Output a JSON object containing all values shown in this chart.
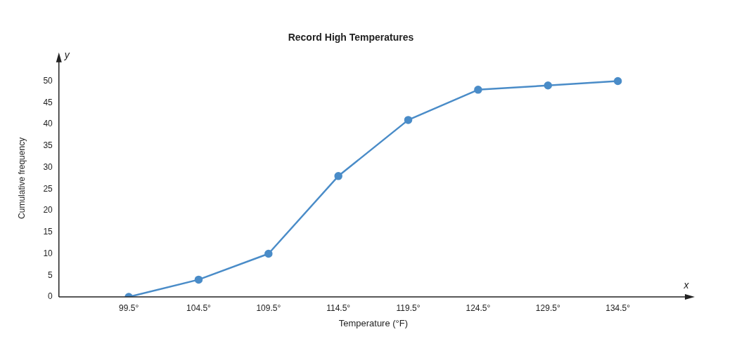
{
  "chart_data": {
    "type": "line",
    "title": "Record High Temperatures",
    "xlabel": "Temperature (°F)",
    "ylabel": "Cumulative frequency",
    "x": [
      99.5,
      104.5,
      109.5,
      114.5,
      119.5,
      124.5,
      129.5,
      134.5
    ],
    "series": [
      {
        "color": "#4a8cc8",
        "values": [
          0,
          4,
          10,
          28,
          41,
          48,
          49,
          50
        ]
      }
    ],
    "xlim": [
      94.5,
      139.5
    ],
    "xticks": [
      {
        "value": 99.5,
        "label": "99.5°"
      },
      {
        "value": 104.5,
        "label": "104.5°"
      },
      {
        "value": 109.5,
        "label": "109.5°"
      },
      {
        "value": 114.5,
        "label": "114.5°"
      },
      {
        "value": 119.5,
        "label": "119.5°"
      },
      {
        "value": 124.5,
        "label": "124.5°"
      },
      {
        "value": 129.5,
        "label": "129.5°"
      },
      {
        "value": 134.5,
        "label": "134.5°"
      }
    ],
    "ylim": [
      0,
      55
    ],
    "yticks": [
      0,
      5,
      10,
      15,
      20,
      25,
      30,
      35,
      40,
      45,
      50
    ],
    "annotations": [
      "y",
      "x"
    ],
    "grid": false,
    "legend": false,
    "marker": "circle",
    "line_style": "solid"
  }
}
